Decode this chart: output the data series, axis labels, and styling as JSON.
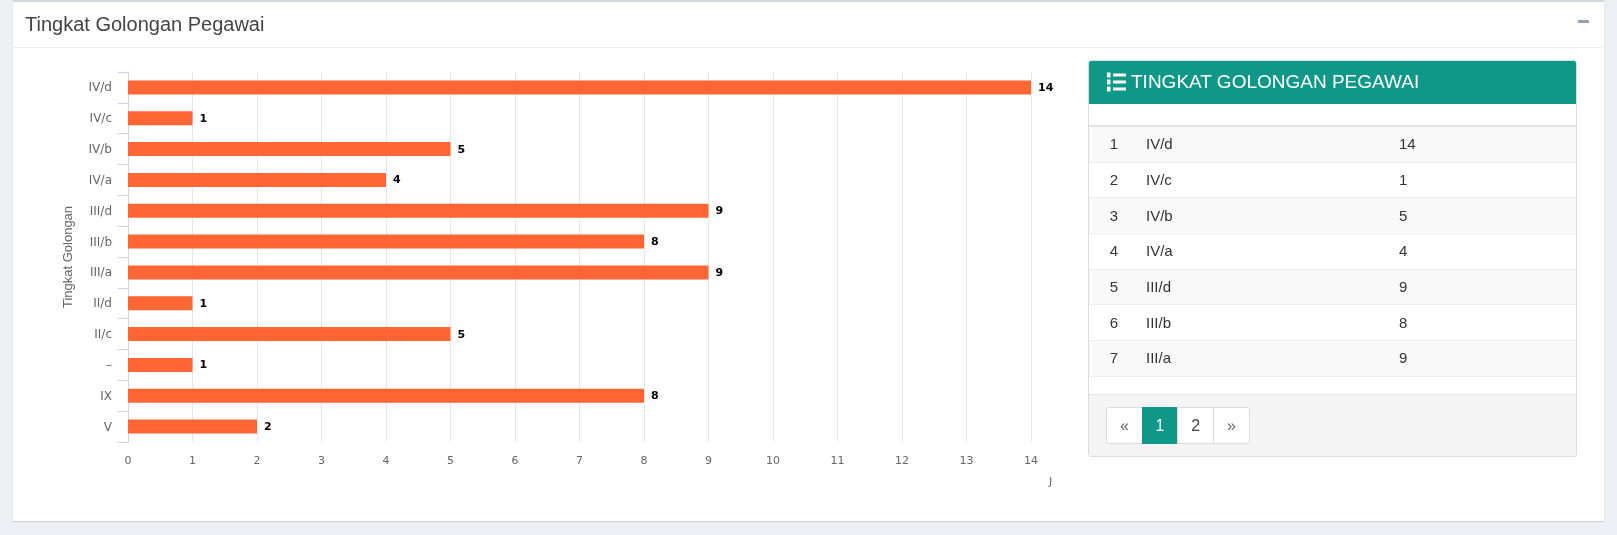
{
  "chart_data": {
    "type": "bar",
    "orientation": "horizontal",
    "title": "Tingkat Golongan Pegawai",
    "xlabel": "J",
    "ylabel": "Tingkat Golongan",
    "categories": [
      "IV/d",
      "IV/c",
      "IV/b",
      "IV/a",
      "III/d",
      "III/b",
      "III/a",
      "II/d",
      "II/c",
      "–",
      "IX",
      "V"
    ],
    "values": [
      14,
      1,
      5,
      4,
      9,
      8,
      9,
      1,
      5,
      1,
      8,
      2
    ],
    "color": "#ff6633",
    "xlim": [
      0,
      14
    ],
    "xticks": [
      0,
      1,
      2,
      3,
      4,
      5,
      6,
      7,
      8,
      9,
      10,
      11,
      12,
      13,
      14
    ],
    "grid": "x",
    "data_labels": true,
    "annotations": [
      "TINGKAT GOLONGAN PEGAWAI",
      "1",
      "IV/d",
      "14",
      "2",
      "IV/c",
      "1",
      "3",
      "IV/b",
      "5",
      "4",
      "IV/a",
      "4",
      "5",
      "III/d",
      "9",
      "6",
      "III/b",
      "8",
      "7",
      "III/a",
      "9",
      "«",
      "1",
      "2",
      "»"
    ]
  }
}
